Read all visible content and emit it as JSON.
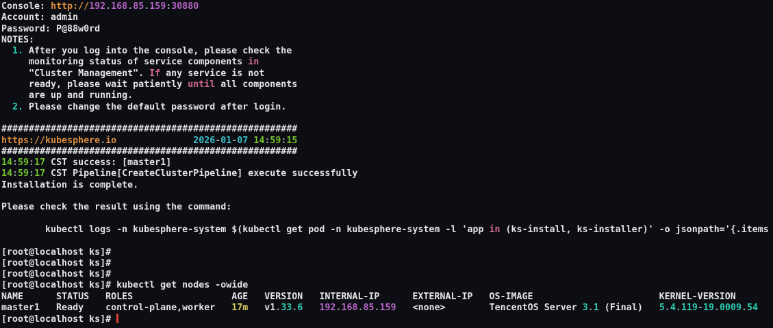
{
  "colors": {
    "background": "#0c0e13",
    "fg": "#e4e4e6",
    "orange": "#dd8f3d",
    "purple": "#b765c8",
    "green": "#74c32c",
    "cyan": "#3ac0cd",
    "teal": "#2ec9b0",
    "pink": "#d0698b",
    "yellow": "#d5c85f",
    "dim": "#989ca6",
    "cursor": "#e23f3a"
  },
  "terminal": {
    "console_url": "http://192.168.85.159:30880",
    "account": "admin",
    "password": "P@88w0rd",
    "lines": [
      {
        "segments": [
          {
            "t": "Console: ",
            "c": "fg"
          },
          {
            "t": "http://",
            "c": "orange"
          },
          {
            "t": "192",
            "c": "purple"
          },
          {
            "t": ".",
            "c": "dim"
          },
          {
            "t": "168",
            "c": "purple"
          },
          {
            "t": ".",
            "c": "dim"
          },
          {
            "t": "85",
            "c": "purple"
          },
          {
            "t": ".",
            "c": "dim"
          },
          {
            "t": "159",
            "c": "purple"
          },
          {
            "t": ":",
            "c": "dim"
          },
          {
            "t": "30880",
            "c": "purple"
          }
        ]
      },
      {
        "segments": [
          {
            "t": "Account: admin",
            "c": "fg"
          }
        ]
      },
      {
        "segments": [
          {
            "t": "Password: P@88w0rd",
            "c": "fg"
          }
        ]
      },
      {
        "segments": [
          {
            "t": "NOTES:",
            "c": "fg"
          }
        ]
      },
      {
        "segments": [
          {
            "t": "  ",
            "c": "fg"
          },
          {
            "t": "1.",
            "c": "teal"
          },
          {
            "t": " After you log into the console, please check the",
            "c": "fg"
          }
        ]
      },
      {
        "segments": [
          {
            "t": "     monitoring status of service components ",
            "c": "fg"
          },
          {
            "t": "in",
            "c": "pink"
          }
        ]
      },
      {
        "segments": [
          {
            "t": "     \"Cluster Management\". ",
            "c": "fg"
          },
          {
            "t": "If",
            "c": "pink"
          },
          {
            "t": " any service is not",
            "c": "fg"
          }
        ]
      },
      {
        "segments": [
          {
            "t": "     ready, please wait patiently ",
            "c": "fg"
          },
          {
            "t": "until",
            "c": "pink"
          },
          {
            "t": " all components",
            "c": "fg"
          }
        ]
      },
      {
        "segments": [
          {
            "t": "     are up and running.",
            "c": "fg"
          }
        ]
      },
      {
        "segments": [
          {
            "t": "  ",
            "c": "fg"
          },
          {
            "t": "2.",
            "c": "teal"
          },
          {
            "t": " Please change the default password after login.",
            "c": "fg"
          }
        ]
      },
      {
        "segments": []
      },
      {
        "segments": [
          {
            "t": "######################################################",
            "c": "fg"
          }
        ]
      },
      {
        "segments": [
          {
            "t": "https://kubesphere",
            "c": "orange"
          },
          {
            "t": ".",
            "c": "dim"
          },
          {
            "t": "io",
            "c": "orange"
          },
          {
            "t": "              ",
            "c": "fg"
          },
          {
            "t": "2026",
            "c": "cyan"
          },
          {
            "t": "-",
            "c": "dim"
          },
          {
            "t": "01",
            "c": "cyan"
          },
          {
            "t": "-",
            "c": "dim"
          },
          {
            "t": "07",
            "c": "cyan"
          },
          {
            "t": " ",
            "c": "fg"
          },
          {
            "t": "14",
            "c": "green"
          },
          {
            "t": ":",
            "c": "dim"
          },
          {
            "t": "59",
            "c": "green"
          },
          {
            "t": ":",
            "c": "dim"
          },
          {
            "t": "15",
            "c": "green"
          }
        ]
      },
      {
        "segments": [
          {
            "t": "######################################################",
            "c": "fg"
          }
        ]
      },
      {
        "segments": [
          {
            "t": "14",
            "c": "green"
          },
          {
            "t": ":",
            "c": "dim"
          },
          {
            "t": "59",
            "c": "green"
          },
          {
            "t": ":",
            "c": "dim"
          },
          {
            "t": "17",
            "c": "green"
          },
          {
            "t": " CST success: [master1]",
            "c": "fg"
          }
        ]
      },
      {
        "segments": [
          {
            "t": "14",
            "c": "green"
          },
          {
            "t": ":",
            "c": "dim"
          },
          {
            "t": "59",
            "c": "green"
          },
          {
            "t": ":",
            "c": "dim"
          },
          {
            "t": "17",
            "c": "green"
          },
          {
            "t": " CST Pipeline[CreateClusterPipeline] execute successfully",
            "c": "fg"
          }
        ]
      },
      {
        "segments": [
          {
            "t": "Installation is complete.",
            "c": "fg"
          }
        ]
      },
      {
        "segments": []
      },
      {
        "segments": [
          {
            "t": "Please check the result using the command:",
            "c": "fg"
          }
        ]
      },
      {
        "segments": []
      },
      {
        "segments": [
          {
            "t": "        kubectl logs -n kubesphere-system $(kubectl get pod -n kubesphere-system -l 'app ",
            "c": "fg"
          },
          {
            "t": "in",
            "c": "pink"
          },
          {
            "t": " (ks-install, ks-installer)' -o jsonpath='{.items",
            "c": "fg"
          }
        ]
      },
      {
        "segments": []
      },
      {
        "segments": [
          {
            "t": "[root@localhost ks]#",
            "c": "fg"
          }
        ]
      },
      {
        "segments": [
          {
            "t": "[root@localhost ks]#",
            "c": "fg"
          }
        ]
      },
      {
        "segments": [
          {
            "t": "[root@localhost ks]#",
            "c": "fg"
          }
        ]
      },
      {
        "segments": [
          {
            "t": "[root@localhost ks]# kubectl get nodes -owide",
            "c": "fg"
          }
        ]
      },
      {
        "segments": [
          {
            "t": "NAME      STATUS   ROLES                  AGE   VERSION   INTERNAL-IP      EXTERNAL-IP   OS-IMAGE                       KERNEL-VERSION",
            "c": "fg"
          }
        ]
      },
      {
        "segments": [
          {
            "t": "master1   Ready    control-plane,worker   ",
            "c": "fg"
          },
          {
            "t": "17m",
            "c": "yellow"
          },
          {
            "t": "   v1",
            "c": "fg"
          },
          {
            "t": ".",
            "c": "dim"
          },
          {
            "t": "33",
            "c": "teal"
          },
          {
            "t": ".",
            "c": "dim"
          },
          {
            "t": "6",
            "c": "teal"
          },
          {
            "t": "   ",
            "c": "fg"
          },
          {
            "t": "192",
            "c": "purple"
          },
          {
            "t": ".",
            "c": "dim"
          },
          {
            "t": "168",
            "c": "purple"
          },
          {
            "t": ".",
            "c": "dim"
          },
          {
            "t": "85",
            "c": "purple"
          },
          {
            "t": ".",
            "c": "dim"
          },
          {
            "t": "159",
            "c": "purple"
          },
          {
            "t": "   <none>        TencentOS Server ",
            "c": "fg"
          },
          {
            "t": "3",
            "c": "teal"
          },
          {
            "t": ".",
            "c": "dim"
          },
          {
            "t": "1",
            "c": "teal"
          },
          {
            "t": " (Final)   ",
            "c": "fg"
          },
          {
            "t": "5",
            "c": "teal"
          },
          {
            "t": ".",
            "c": "dim"
          },
          {
            "t": "4",
            "c": "teal"
          },
          {
            "t": ".",
            "c": "dim"
          },
          {
            "t": "119",
            "c": "teal"
          },
          {
            "t": "-",
            "c": "dim"
          },
          {
            "t": "19",
            "c": "teal"
          },
          {
            "t": ".",
            "c": "dim"
          },
          {
            "t": "0009",
            "c": "teal"
          },
          {
            "t": ".",
            "c": "dim"
          },
          {
            "t": "54",
            "c": "teal"
          }
        ]
      },
      {
        "segments": [
          {
            "t": "[root@localhost ks]# ",
            "c": "fg"
          }
        ],
        "cursor": true
      }
    ]
  }
}
